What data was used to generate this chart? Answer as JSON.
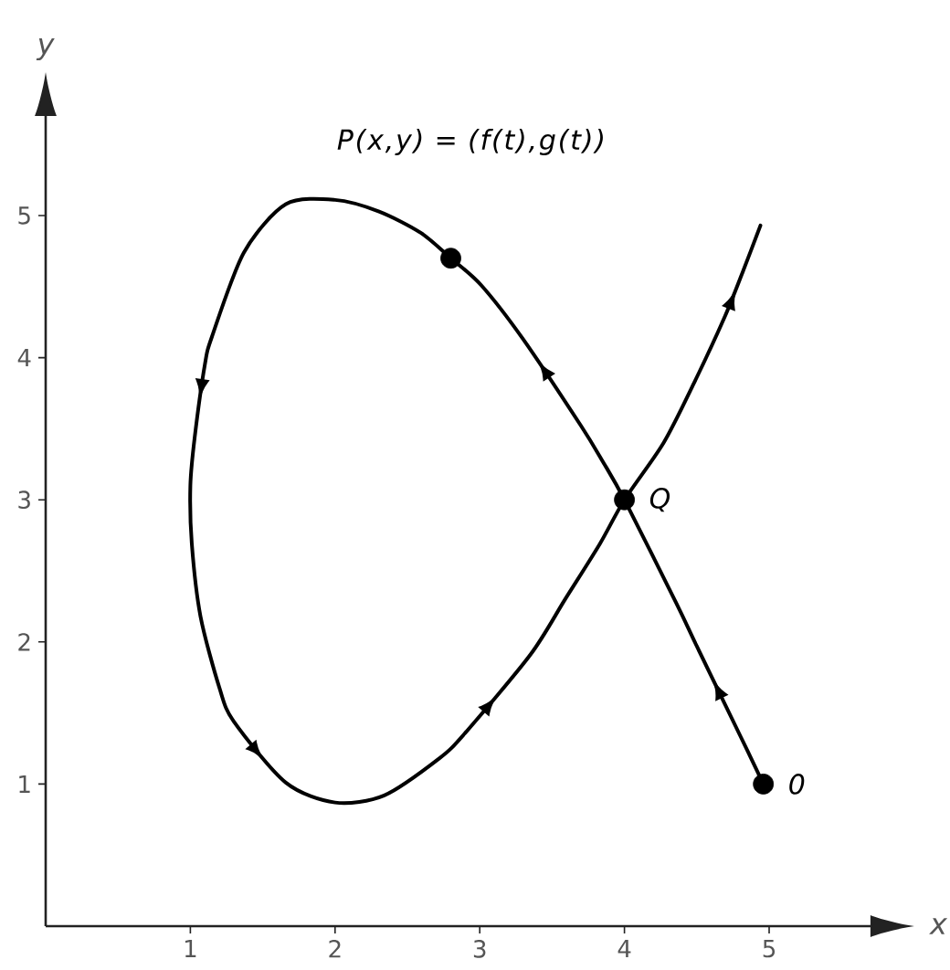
{
  "chart_data": {
    "type": "line",
    "title": "P(x,y) = (f(t),g(t))",
    "xlabel": "x",
    "ylabel": "y",
    "xlim": [
      0,
      5.7
    ],
    "ylim": [
      0,
      5.7
    ],
    "xticks": [
      1,
      2,
      3,
      4,
      5
    ],
    "yticks": [
      1,
      2,
      3,
      4,
      5
    ],
    "series": [
      {
        "color": "#000000",
        "x": [
          4.96,
          4.8,
          4.5,
          4.36,
          4.0,
          3.85,
          3.7,
          3.3,
          3.01,
          2.8,
          2.59,
          2.3,
          2.0,
          1.66,
          1.37,
          1.15,
          1.1,
          1.03,
          1.0,
          1.01,
          1.07,
          1.2,
          1.3,
          1.66,
          2.0,
          2.34,
          2.72,
          2.9,
          3.35,
          3.59,
          3.83,
          4.0,
          4.27,
          4.48,
          4.69,
          4.82,
          4.94
        ],
        "values": [
          1.0,
          1.34,
          1.97,
          2.27,
          3.0,
          3.27,
          3.52,
          4.13,
          4.51,
          4.7,
          4.88,
          5.03,
          5.11,
          5.08,
          4.74,
          4.15,
          3.95,
          3.44,
          3.1,
          2.69,
          2.18,
          1.68,
          1.44,
          1.01,
          0.87,
          0.92,
          1.18,
          1.36,
          1.91,
          2.3,
          2.69,
          3.0,
          3.4,
          3.82,
          4.28,
          4.61,
          4.93
        ]
      },
      {
        "type": "scatter",
        "marker": "circle",
        "color": "#000000",
        "x": [
          4.96,
          2.8,
          4.0
        ],
        "values": [
          1.0,
          4.7,
          3.0
        ]
      }
    ],
    "annotations": [
      {
        "text": "0",
        "x": 4.96,
        "y": 1.0
      },
      {
        "text": "Q",
        "x": 4.0,
        "y": 3.0
      }
    ]
  }
}
